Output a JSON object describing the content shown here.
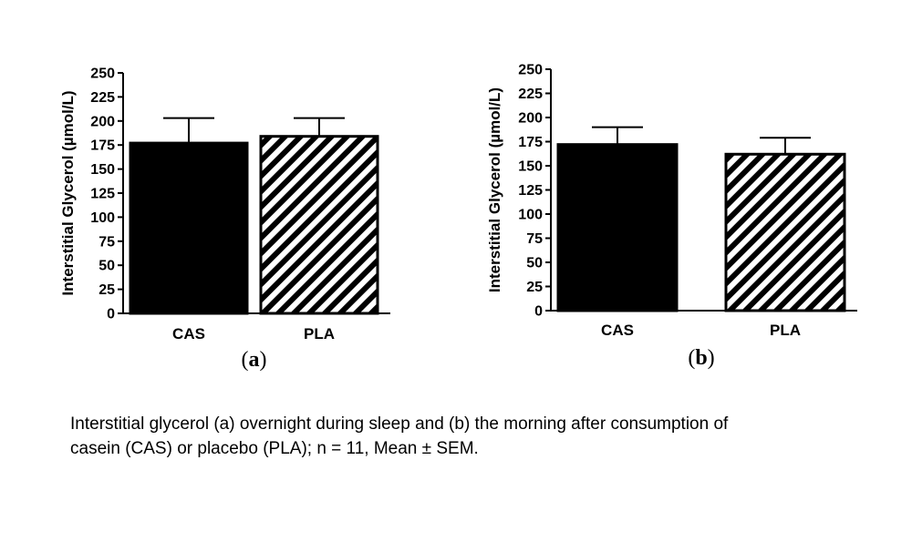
{
  "chart_data": [
    {
      "type": "bar",
      "panel": "(a)",
      "panel_letter": "a",
      "ylabel": "Interstitial Glycerol (µmol/L)",
      "ylim": [
        0,
        250
      ],
      "yticks": [
        0,
        25,
        50,
        75,
        100,
        125,
        150,
        175,
        200,
        225,
        250
      ],
      "categories": [
        "CAS",
        "PLA"
      ],
      "values": [
        177,
        184
      ],
      "errors": [
        26,
        19
      ],
      "fills": [
        "solid",
        "hatched"
      ]
    },
    {
      "type": "bar",
      "panel": "(b)",
      "panel_letter": "b",
      "ylabel": "Interstitial Glycerol (µmol/L)",
      "ylim": [
        0,
        250
      ],
      "yticks": [
        0,
        25,
        50,
        75,
        100,
        125,
        150,
        175,
        200,
        225,
        250
      ],
      "categories": [
        "CAS",
        "PLA"
      ],
      "values": [
        172,
        162
      ],
      "errors": [
        18,
        17
      ],
      "fills": [
        "solid",
        "hatched"
      ]
    }
  ],
  "caption": {
    "line1": "Interstitial glycerol (a) overnight during sleep and (b) the morning after consumption of",
    "line2": "casein (CAS) or placebo (PLA); n = 11, Mean ± SEM."
  },
  "colors": {
    "bar_fill": "#000000",
    "background": "#ffffff",
    "hatch": "#000000"
  }
}
